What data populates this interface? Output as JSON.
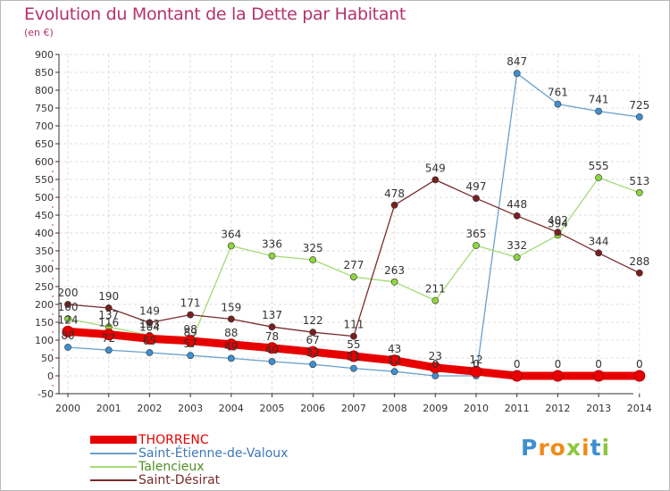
{
  "title": "Evolution du Montant de la Dette par Habitant",
  "subtitle": "(en €)",
  "logo": {
    "letters": [
      "P",
      "r",
      "o",
      "x",
      "i",
      "t",
      "i"
    ],
    "colors": [
      "#3d8fd1",
      "#f08c1a",
      "#f08c1a",
      "#8dc63f",
      "#f08c1a",
      "#3d8fd1",
      "#8dc63f"
    ]
  },
  "chart_data": {
    "type": "line",
    "title": "Evolution du Montant de la Dette par Habitant",
    "ylabel": "(en €)",
    "xlabel": "",
    "ylim": [
      -50,
      900
    ],
    "ytick_step": 50,
    "categories": [
      "2000",
      "2001",
      "2002",
      "2003",
      "2004",
      "2005",
      "2006",
      "2007",
      "2008",
      "2009",
      "2010",
      "2011",
      "2012",
      "2013",
      "2014"
    ],
    "series": [
      {
        "name": "THORRENC",
        "color": "#e80000",
        "marker": "#e80000",
        "values": [
          124,
          116,
          104,
          98,
          88,
          78,
          67,
          55,
          43,
          23,
          12,
          0,
          0,
          0,
          0
        ],
        "labels": [
          "124",
          "116",
          "104",
          "98",
          "88",
          "78",
          "67",
          "55",
          "43",
          "23",
          "12",
          "0",
          "0",
          "0",
          "0"
        ]
      },
      {
        "name": "Saint-Étienne-de-Valoux",
        "color": "#6aa0c9",
        "marker": "#3d8fd1",
        "values": [
          80,
          72,
          65,
          57,
          49,
          40,
          32,
          21,
          12,
          0,
          0,
          847,
          761,
          741,
          725
        ],
        "labels": [
          "80",
          "72",
          "65",
          "57",
          "49",
          "40",
          "32",
          "21",
          "12",
          "0",
          "0",
          "847",
          "761",
          "741",
          "725"
        ]
      },
      {
        "name": "Talencieux",
        "color": "#a6da76",
        "marker": "#8dd63e",
        "values": [
          160,
          137,
          113,
          89,
          364,
          336,
          325,
          277,
          263,
          211,
          365,
          332,
          394,
          555,
          513
        ],
        "labels": [
          "160",
          "137",
          "113",
          "89",
          "364",
          "336",
          "325",
          "277",
          "263",
          "211",
          "365",
          "332",
          "394",
          "555",
          "513"
        ]
      },
      {
        "name": "Saint-Désirat",
        "color": "#7a2b2b",
        "marker": "#7a1f1f",
        "values": [
          200,
          190,
          149,
          171,
          159,
          137,
          122,
          111,
          478,
          549,
          497,
          448,
          402,
          344,
          288
        ],
        "labels": [
          "200",
          "190",
          "149",
          "171",
          "159",
          "137",
          "122",
          "111",
          "478",
          "549",
          "497",
          "448",
          "402",
          "344",
          "288"
        ]
      }
    ],
    "legend_position": "bottom-left",
    "grid": true
  }
}
